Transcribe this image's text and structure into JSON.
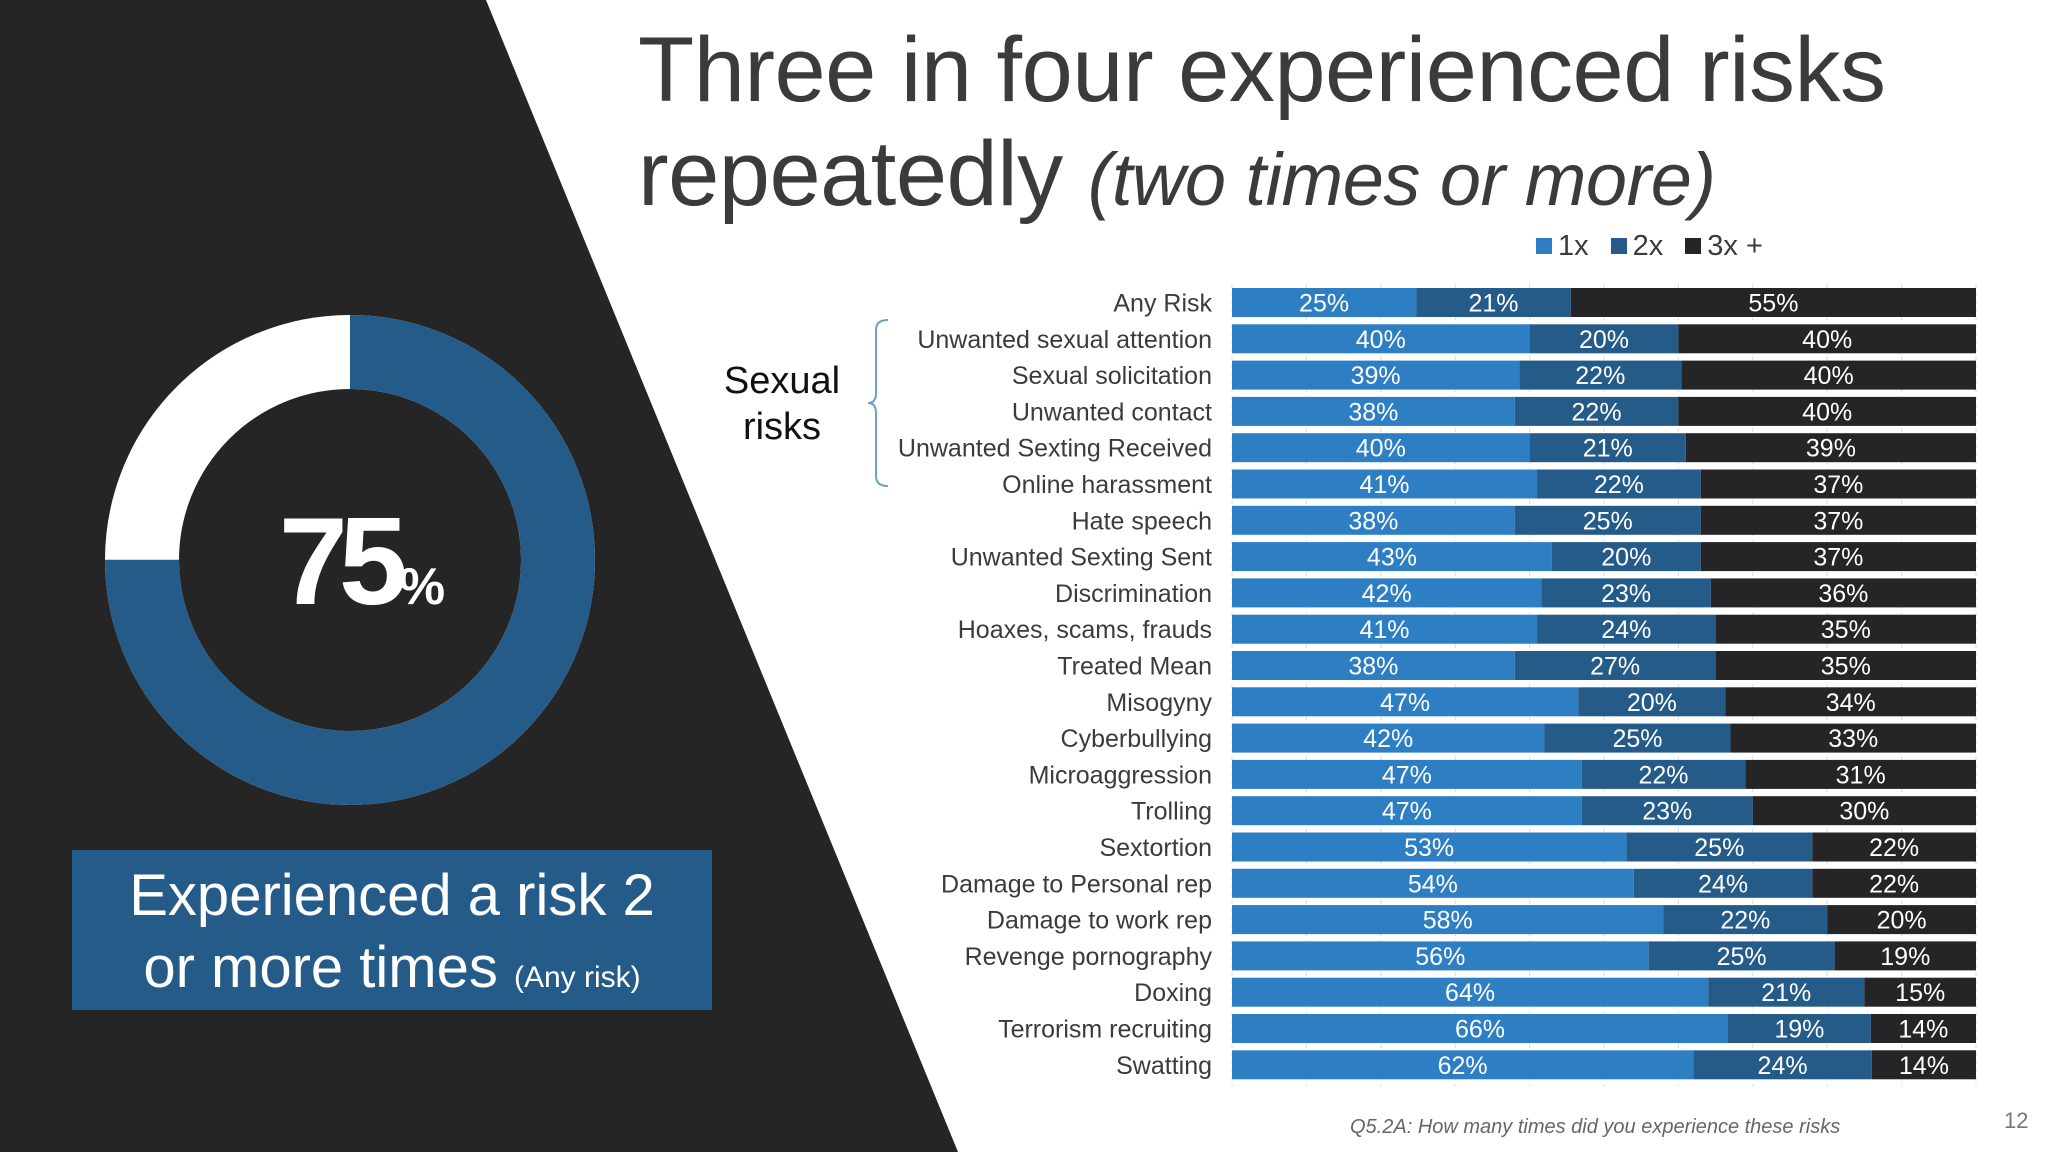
{
  "title": {
    "main": "Three in four experienced risks repeatedly",
    "sub": "(two times or more)"
  },
  "donut": {
    "value": 75,
    "value_label": "75",
    "pct_sign": "%",
    "color": "#255b89",
    "remainder_color": "#ffffff"
  },
  "callout": {
    "line1": "Experienced a risk 2",
    "line2": "or more times",
    "note": "(Any risk)"
  },
  "group_label": {
    "line1": "Sexual",
    "line2": "risks"
  },
  "footnote": "Q5.2A: How many times did you experience these risks",
  "page_number": "12",
  "colors": {
    "panel": "#252525",
    "series_1x": "#2e7ec4",
    "series_2x": "#255b89",
    "series_3x": "#252527"
  },
  "chart_data": {
    "type": "bar",
    "orientation": "horizontal",
    "stacked": true,
    "legend_position": "top-right",
    "categories": [
      "Any Risk",
      "Unwanted sexual attention",
      "Sexual solicitation",
      "Unwanted contact",
      "Unwanted Sexting Received",
      "Online harassment",
      "Hate speech",
      "Unwanted Sexting Sent",
      "Discrimination",
      "Hoaxes, scams, frauds",
      "Treated Mean",
      "Misogyny",
      "Cyberbullying",
      "Microaggression",
      "Trolling",
      "Sextortion",
      "Damage to Personal rep",
      "Damage to work rep",
      "Revenge pornography",
      "Doxing",
      "Terrorism recruiting",
      "Swatting"
    ],
    "series": [
      {
        "name": "1x",
        "values": [
          25,
          40,
          39,
          38,
          40,
          41,
          38,
          43,
          42,
          41,
          38,
          47,
          42,
          47,
          47,
          53,
          54,
          58,
          56,
          64,
          66,
          62
        ]
      },
      {
        "name": "2x",
        "values": [
          21,
          20,
          22,
          22,
          21,
          22,
          25,
          20,
          23,
          24,
          27,
          20,
          25,
          22,
          23,
          25,
          24,
          22,
          25,
          21,
          19,
          24
        ]
      },
      {
        "name": "3x +",
        "values": [
          55,
          40,
          40,
          40,
          39,
          37,
          37,
          37,
          36,
          35,
          35,
          34,
          33,
          31,
          30,
          22,
          22,
          20,
          19,
          15,
          14,
          14
        ]
      }
    ],
    "xlim": [
      0,
      100
    ],
    "value_suffix": "%"
  }
}
